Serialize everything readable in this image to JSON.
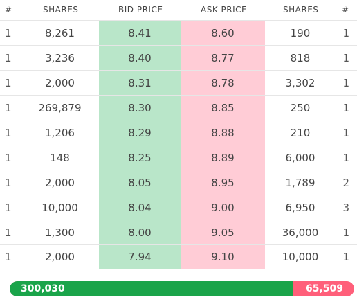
{
  "header": {
    "count_left": "#",
    "shares_left": "SHARES",
    "bid_price": "BID PRICE",
    "ask_price": "ASK PRICE",
    "shares_right": "SHARES",
    "count_right": "#"
  },
  "rows": [
    {
      "bid_count": "1",
      "bid_shares": "8,261",
      "bid_price": "8.41",
      "ask_price": "8.60",
      "ask_shares": "190",
      "ask_count": "1"
    },
    {
      "bid_count": "1",
      "bid_shares": "3,236",
      "bid_price": "8.40",
      "ask_price": "8.77",
      "ask_shares": "818",
      "ask_count": "1"
    },
    {
      "bid_count": "1",
      "bid_shares": "2,000",
      "bid_price": "8.31",
      "ask_price": "8.78",
      "ask_shares": "3,302",
      "ask_count": "1"
    },
    {
      "bid_count": "1",
      "bid_shares": "269,879",
      "bid_price": "8.30",
      "ask_price": "8.85",
      "ask_shares": "250",
      "ask_count": "1"
    },
    {
      "bid_count": "1",
      "bid_shares": "1,206",
      "bid_price": "8.29",
      "ask_price": "8.88",
      "ask_shares": "210",
      "ask_count": "1"
    },
    {
      "bid_count": "1",
      "bid_shares": "148",
      "bid_price": "8.25",
      "ask_price": "8.89",
      "ask_shares": "6,000",
      "ask_count": "1"
    },
    {
      "bid_count": "1",
      "bid_shares": "2,000",
      "bid_price": "8.05",
      "ask_price": "8.95",
      "ask_shares": "1,789",
      "ask_count": "2"
    },
    {
      "bid_count": "1",
      "bid_shares": "10,000",
      "bid_price": "8.04",
      "ask_price": "9.00",
      "ask_shares": "6,950",
      "ask_count": "3"
    },
    {
      "bid_count": "1",
      "bid_shares": "1,300",
      "bid_price": "8.00",
      "ask_price": "9.05",
      "ask_shares": "36,000",
      "ask_count": "1"
    },
    {
      "bid_count": "1",
      "bid_shares": "2,000",
      "bid_price": "7.94",
      "ask_price": "9.10",
      "ask_shares": "10,000",
      "ask_count": "1"
    }
  ],
  "totals": {
    "bid_total": "300,030",
    "ask_total": "65,509",
    "bid_fraction": 0.8208
  },
  "colors": {
    "bid_cell": "#b9e6c9",
    "ask_cell": "#ffccd6",
    "bid_bar": "#1aa44a",
    "ask_bar": "#ff5f7a"
  }
}
